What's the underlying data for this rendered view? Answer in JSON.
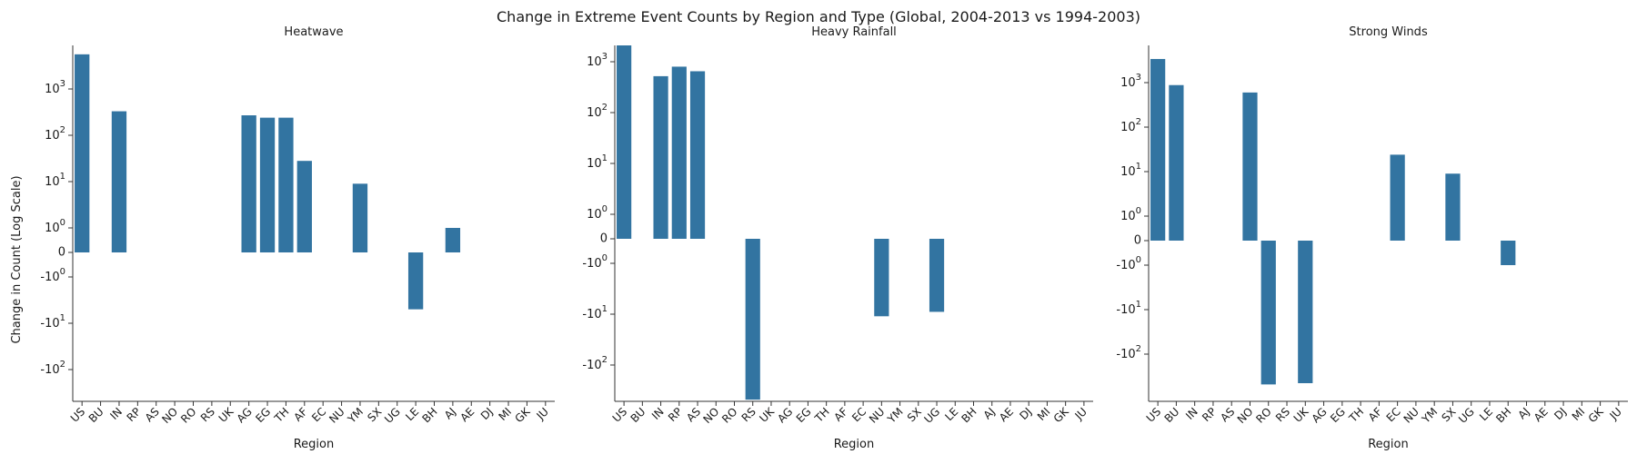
{
  "figure": {
    "title": "Change in Extreme Event Counts by Region and Type (Global, 2004-2013 vs 1994-2003)"
  },
  "colors": {
    "bar": "#3274a1",
    "axis": "#333333",
    "text": "#1a1a1a"
  },
  "chart_data": [
    {
      "type": "bar",
      "title": "Heatwave",
      "xlabel": "Region",
      "ylabel": "Change in Count (Log Scale)",
      "yscale": "symlog",
      "yticks": [
        "-10^2",
        "-10^1",
        "-10^0",
        "0",
        "10^0",
        "10^1",
        "10^2",
        "10^3"
      ],
      "ylim": [
        -300,
        6000
      ],
      "categories": [
        "US",
        "BU",
        "IN",
        "RP",
        "AS",
        "NO",
        "RO",
        "RS",
        "UK",
        "AG",
        "EG",
        "TH",
        "AF",
        "EC",
        "NU",
        "YM",
        "SX",
        "UG",
        "LE",
        "BH",
        "AJ",
        "AE",
        "DJ",
        "MI",
        "GK",
        "JU"
      ],
      "values": [
        5600,
        0,
        330,
        0,
        0,
        0,
        0,
        0,
        0,
        270,
        240,
        240,
        28,
        0,
        0,
        9,
        0,
        0,
        -5,
        0,
        1,
        0,
        0,
        0,
        0,
        0
      ]
    },
    {
      "type": "bar",
      "title": "Heavy Rainfall",
      "xlabel": "Region",
      "ylabel": "",
      "yscale": "symlog",
      "yticks": [
        "-10^2",
        "-10^1",
        "-10^0",
        "0",
        "10^0",
        "10^1",
        "10^2",
        "10^3"
      ],
      "ylim": [
        -500,
        3500
      ],
      "categories": [
        "US",
        "BU",
        "IN",
        "RP",
        "AS",
        "NO",
        "RO",
        "RS",
        "UK",
        "AG",
        "EG",
        "TH",
        "AF",
        "EC",
        "NU",
        "YM",
        "SX",
        "UG",
        "LE",
        "BH",
        "AJ",
        "AE",
        "DJ",
        "MI",
        "GK",
        "JU"
      ],
      "values": [
        3400,
        0,
        520,
        800,
        650,
        0,
        0,
        -480,
        0,
        0,
        0,
        0,
        0,
        0,
        -11,
        0,
        0,
        -9,
        0,
        0,
        0,
        0,
        0,
        0,
        0,
        0
      ]
    },
    {
      "type": "bar",
      "title": "Strong Winds",
      "xlabel": "Region",
      "ylabel": "",
      "yscale": "symlog",
      "yticks": [
        "-10^2",
        "-10^1",
        "-10^0",
        "0",
        "10^0",
        "10^1",
        "10^2",
        "10^3"
      ],
      "ylim": [
        -500,
        3500
      ],
      "categories": [
        "US",
        "BU",
        "IN",
        "RP",
        "AS",
        "NO",
        "RO",
        "RS",
        "UK",
        "AG",
        "EG",
        "TH",
        "AF",
        "EC",
        "NU",
        "YM",
        "SX",
        "UG",
        "LE",
        "BH",
        "AJ",
        "AE",
        "DJ",
        "MI",
        "GK",
        "JU"
      ],
      "values": [
        3400,
        880,
        0,
        0,
        0,
        600,
        -480,
        0,
        -450,
        0,
        0,
        0,
        0,
        24,
        0,
        0,
        9,
        0,
        0,
        -1,
        0,
        0,
        0,
        0,
        0,
        0
      ]
    }
  ]
}
